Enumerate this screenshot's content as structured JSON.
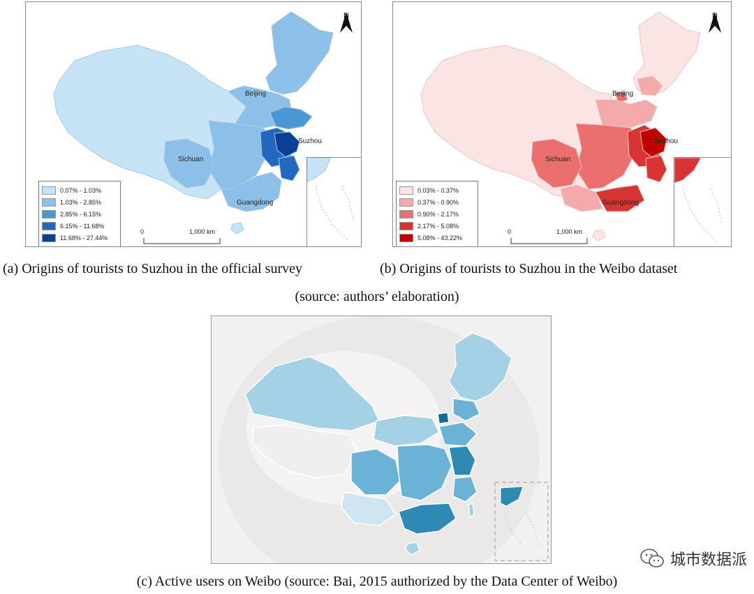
{
  "figures": {
    "a": {
      "caption": "(a) Origins of tourists to Suzhou in the official survey",
      "legend": [
        "0.07% -  1.03%",
        "1.03% -  2.85%",
        "2.85% -  6.15%",
        "6.15% - 11.68%",
        "11.68% - 27.44%"
      ],
      "legend_colors": [
        "#c6e4f6",
        "#8cc0e8",
        "#4a97d6",
        "#2268bf",
        "#0c3f97"
      ],
      "cities": {
        "beijing": "Beijing",
        "suzhou": "Suzhou",
        "sichuan": "Sichuan",
        "guangdong": "Guangdong"
      },
      "north": "N",
      "scale_zero": "0",
      "scale_label": "1,000 km"
    },
    "b": {
      "caption": "(b) Origins of tourists to Suzhou in the Weibo dataset",
      "legend": [
        "0.03% -  0.37%",
        "0.37% -  0.90%",
        "0.90% -  2.17%",
        "2.17% -  5.08%",
        "5.08% - 43.22%"
      ],
      "legend_colors": [
        "#fbe4e4",
        "#f4aaaa",
        "#eb6f6f",
        "#d83434",
        "#c00000"
      ],
      "cities": {
        "beijing": "Beijing",
        "suzhou": "Suzhou",
        "sichuan": "Sichuan",
        "guangdong": "Guangdong"
      },
      "north": "N",
      "scale_zero": "0",
      "scale_label": "1,000 km"
    },
    "ab_source": "(source: authors’ elaboration)",
    "c": {
      "caption": "(c) Active users on Weibo (source: Bai, 2015 authorized by the Data Center of Weibo)",
      "colors": [
        "#cfe6f2",
        "#a5d1e6",
        "#6ab3d6",
        "#2c8ab5",
        "#0f6d98"
      ]
    }
  },
  "watermark": {
    "text": "城市数据派",
    "icon": "wechat-icon"
  }
}
